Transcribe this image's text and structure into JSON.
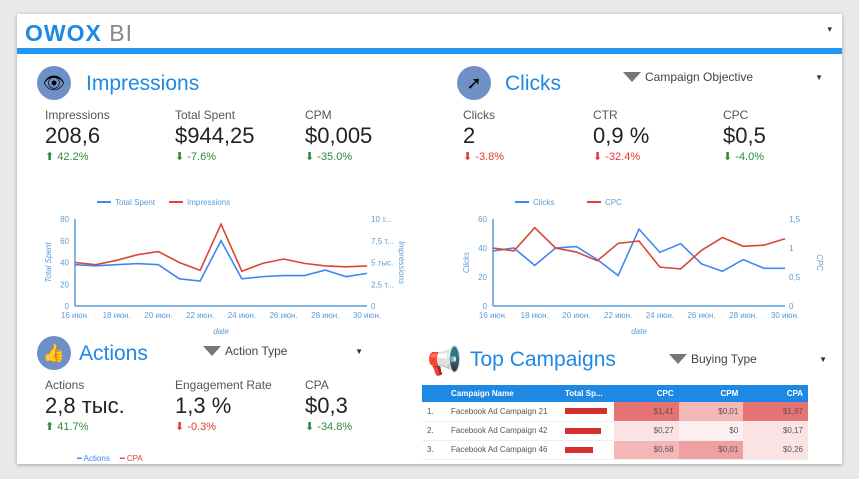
{
  "header": {
    "logo_main": "OWOX",
    "logo_sub": "BI",
    "dropdown": "▾"
  },
  "impressions": {
    "title": "Impressions",
    "icon": "eye-icon",
    "kpis": [
      {
        "label": "Impressions",
        "value": "208,6",
        "change": "42.2%",
        "dir": "up"
      },
      {
        "label": "Total Spent",
        "value": "$944,25",
        "change": "-7.6%",
        "dir": "down"
      },
      {
        "label": "CPM",
        "value": "$0,005",
        "change": "-35.0%",
        "dir": "down"
      }
    ]
  },
  "clicks": {
    "title": "Clicks",
    "icon": "cursor-icon",
    "filter": "Campaign Objective",
    "kpis": [
      {
        "label": "Clicks",
        "value": "2",
        "change": "-3.8%",
        "dir": "down-bad"
      },
      {
        "label": "CTR",
        "value": "0,9 %",
        "change": "-32.4%",
        "dir": "down-bad"
      },
      {
        "label": "CPC",
        "value": "$0,5",
        "change": "-4.0%",
        "dir": "down"
      }
    ]
  },
  "actions": {
    "title": "Actions",
    "icon": "thumbs-up-icon",
    "filter": "Action Type",
    "kpis": [
      {
        "label": "Actions",
        "value": "2,8 тыс.",
        "change": "41.7%",
        "dir": "up"
      },
      {
        "label": "Engagement Rate",
        "value": "1,3 %",
        "change": "-0.3%",
        "dir": "down-bad"
      },
      {
        "label": "CPA",
        "value": "$0,3",
        "change": "-34.8%",
        "dir": "down"
      }
    ],
    "legend": [
      "Actions",
      "CPA"
    ]
  },
  "top_campaigns": {
    "title": "Top Campaigns",
    "icon": "megaphone-icon",
    "filter": "Buying Type",
    "columns": [
      "Campaign Name",
      "Total Sp...",
      "CPC",
      "CPM",
      "CPA"
    ],
    "rows": [
      {
        "n": "1.",
        "name": "Facebook Ad Campaign 21",
        "spent": 1.0,
        "cpc": "$1,41",
        "cpm": "$0,01",
        "cpa": "$1,67",
        "cpc_c": "#e57373",
        "cpm_c": "#f4b6b6",
        "cpa_c": "#e57373"
      },
      {
        "n": "2.",
        "name": "Facebook Ad Campaign 42",
        "spent": 0.85,
        "cpc": "$0,27",
        "cpm": "$0",
        "cpa": "$0,17",
        "cpc_c": "#fbe3e3",
        "cpm_c": "#fdf0f0",
        "cpa_c": "#fbe3e3"
      },
      {
        "n": "3.",
        "name": "Facebook Ad Campaign 46",
        "spent": 0.67,
        "cpc": "$0,68",
        "cpm": "$0,01",
        "cpa": "$0,26",
        "cpc_c": "#f4b6b6",
        "cpm_c": "#f0a0a0",
        "cpa_c": "#fbe3e3"
      }
    ]
  },
  "chart_data": [
    {
      "type": "line",
      "x": [
        "16 июн.",
        "17 июн.",
        "18 июн.",
        "19 июн.",
        "20 июн.",
        "21 июн.",
        "22 июн.",
        "23 июн.",
        "24 июн.",
        "25 июн.",
        "26 июн.",
        "27 июн.",
        "28 июн.",
        "29 июн.",
        "30 июн."
      ],
      "xticks": [
        "16 июн.",
        "18 июн.",
        "20 июн.",
        "22 июн.",
        "24 июн.",
        "26 июн.",
        "28 июн.",
        "30 июн."
      ],
      "xlabel": "date",
      "ylabel": "Total Spent",
      "y2label": "Impressions",
      "ylim": [
        0,
        80
      ],
      "y2lim": [
        0,
        10000
      ],
      "yticks": [
        "0",
        "20",
        "40",
        "60",
        "80"
      ],
      "y2ticks": [
        "0",
        "2,5 т...",
        "5 тыс.",
        "7,5 т...",
        "10 т..."
      ],
      "series": [
        {
          "name": "Total Spent",
          "axis": "left",
          "color": "#4285f4",
          "values": [
            38,
            37,
            38,
            39,
            38,
            25,
            23,
            60,
            25,
            27,
            28,
            28,
            33,
            27,
            30
          ]
        },
        {
          "name": "Impressions",
          "axis": "right",
          "color": "#db4437",
          "values": [
            5000,
            4750,
            5250,
            5900,
            6250,
            5000,
            4100,
            9400,
            4000,
            4900,
            5400,
            4900,
            4600,
            4500,
            4600
          ]
        }
      ]
    },
    {
      "type": "line",
      "x": [
        "16 июн.",
        "17 июн.",
        "18 июн.",
        "19 июн.",
        "20 июн.",
        "21 июн.",
        "22 июн.",
        "23 июн.",
        "24 июн.",
        "25 июн.",
        "26 июн.",
        "27 июн.",
        "28 июн.",
        "29 июн.",
        "30 июн."
      ],
      "xticks": [
        "16 июн.",
        "18 июн.",
        "20 июн.",
        "22 июн.",
        "24 июн.",
        "26 июн.",
        "28 июн.",
        "30 июн."
      ],
      "xlabel": "date",
      "ylabel": "Clicks",
      "y2label": "CPC",
      "ylim": [
        0,
        60
      ],
      "y2lim": [
        0,
        1.5
      ],
      "yticks": [
        "0",
        "20",
        "40",
        "60"
      ],
      "y2ticks": [
        "0",
        "0,5",
        "1",
        "1,5"
      ],
      "series": [
        {
          "name": "Clicks",
          "axis": "left",
          "color": "#4285f4",
          "values": [
            38,
            40,
            28,
            40,
            41,
            32,
            21,
            53,
            37,
            43,
            29,
            24,
            32,
            26,
            26
          ]
        },
        {
          "name": "CPC",
          "axis": "right",
          "color": "#db4437",
          "values": [
            1.0,
            0.95,
            1.35,
            1.0,
            0.93,
            0.78,
            1.08,
            1.12,
            0.67,
            0.64,
            0.96,
            1.18,
            1.03,
            1.05,
            1.16
          ]
        }
      ]
    }
  ]
}
